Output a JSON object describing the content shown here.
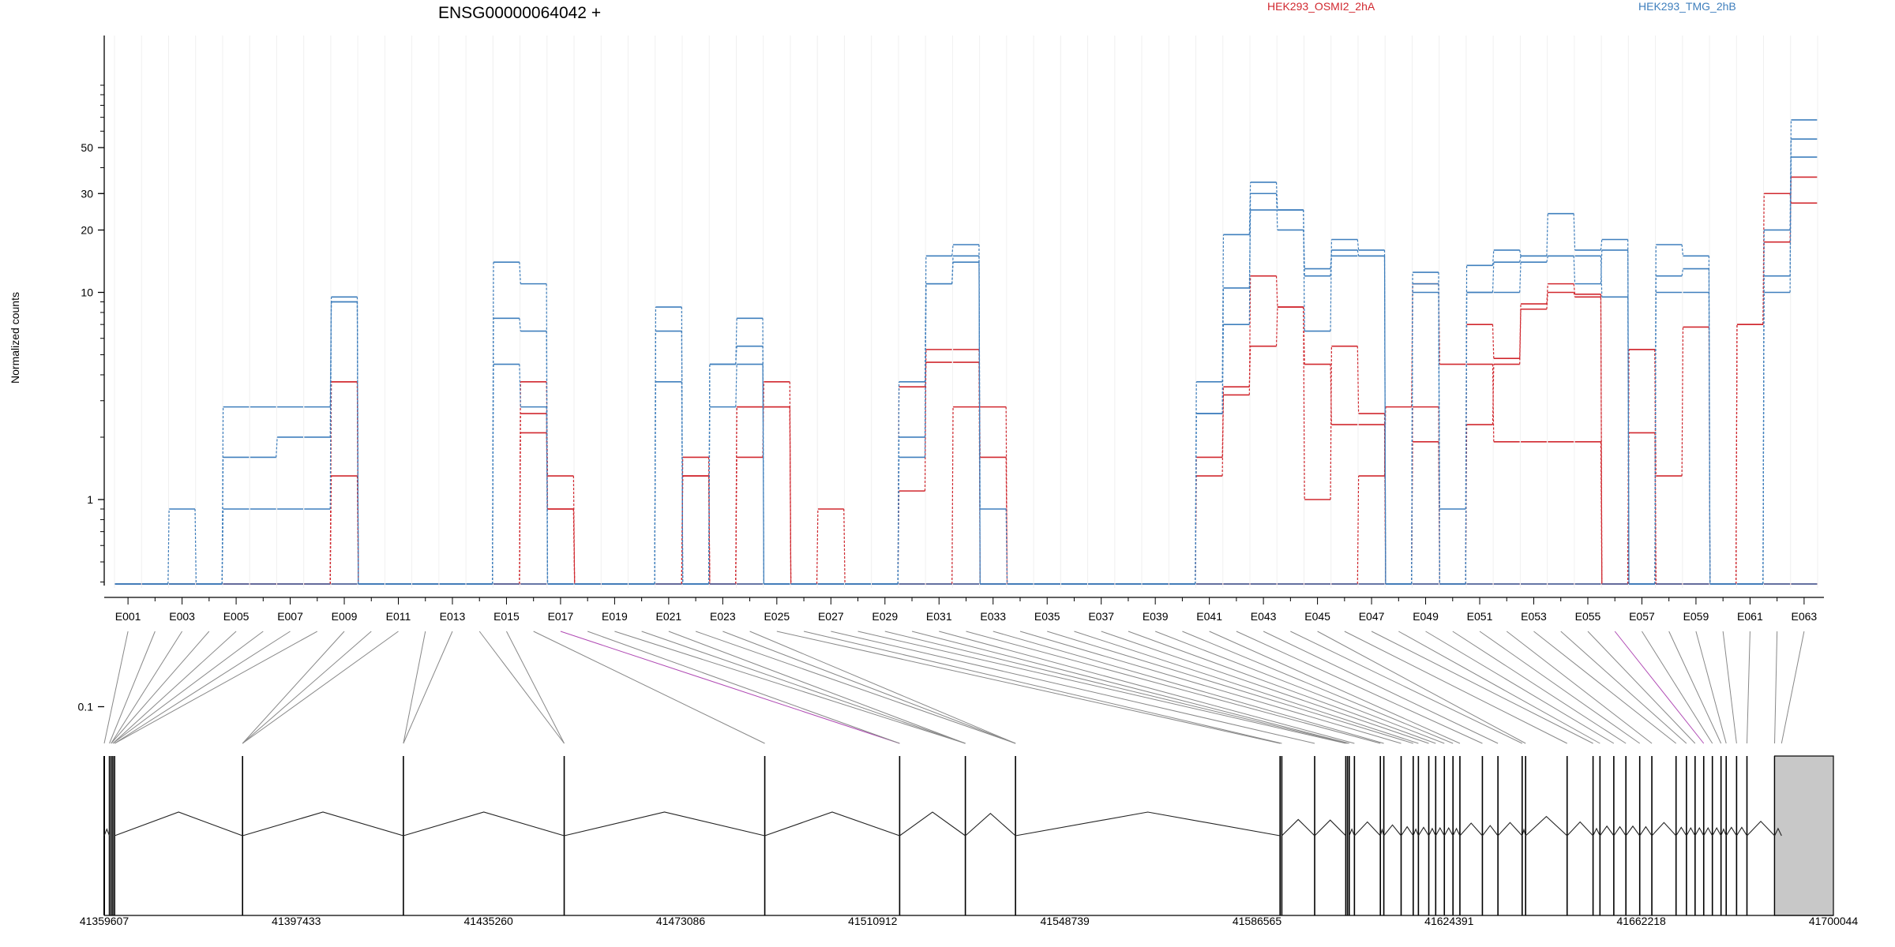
{
  "chart_data": {
    "type": "line",
    "title": "ENSG00000064042 +",
    "ylabel": "Normalized counts",
    "xlabel": "",
    "y_scale": "log",
    "y_ticks": [
      "0.1",
      "1",
      "10",
      "20",
      "30",
      "50"
    ],
    "legend": [
      "HEK293_OSMI2_2hA",
      "HEK293_TMG_2hB"
    ],
    "legend_placement": "top",
    "colors": {
      "osmi": "#d1282f",
      "tmg": "#3f7fbd",
      "link_highlight": "#b04ab4"
    },
    "exon_labels_shown": [
      "E001",
      "E003",
      "E005",
      "E007",
      "E009",
      "E011",
      "E013",
      "E015",
      "E017",
      "E019",
      "E021",
      "E023",
      "E025",
      "E027",
      "E029",
      "E031",
      "E033",
      "E035",
      "E037",
      "E039",
      "E041",
      "E043",
      "E045",
      "E047",
      "E049",
      "E051",
      "E053",
      "E055",
      "E057",
      "E059",
      "E061",
      "E063"
    ],
    "series": [
      {
        "name": "HEK293_OSMI2_2hA",
        "group": "osmi",
        "values": [
          0,
          0,
          0,
          0,
          0,
          0,
          0,
          0,
          0,
          0,
          0,
          0,
          0,
          0,
          0,
          0,
          0,
          0,
          0,
          0,
          0,
          0,
          0,
          0,
          0,
          0,
          0,
          0,
          0,
          0,
          0,
          0,
          0,
          0,
          0,
          0,
          0,
          0,
          0,
          0,
          0,
          0,
          0,
          0,
          0,
          0,
          0,
          0,
          0,
          0,
          0,
          0,
          0,
          0,
          0,
          0,
          0,
          0,
          0,
          0,
          0,
          0,
          0
        ]
      },
      {
        "name": "HEK293_OSMI2_2hA",
        "group": "osmi",
        "values": [
          0,
          0,
          0,
          0,
          0,
          0,
          0,
          0,
          1.3,
          0,
          0,
          0,
          0,
          0,
          0,
          2.6,
          0.9,
          0,
          0,
          0,
          0,
          1.6,
          0,
          2.8,
          2.8,
          0,
          0.9,
          0,
          0,
          0,
          0,
          2.8,
          2.8,
          0,
          0,
          0,
          0,
          0,
          0,
          0,
          0,
          0,
          0,
          0,
          0,
          0,
          1.3,
          2.8,
          11,
          4.5,
          4.5,
          1.9,
          1.9,
          1.9,
          1.9,
          0,
          2.1,
          0,
          0,
          0,
          0,
          0,
          0,
          0,
          0,
          1.3,
          0,
          0,
          0,
          0,
          0,
          0,
          0,
          0,
          0,
          0,
          0,
          0,
          0,
          0,
          0,
          0,
          0,
          0,
          0,
          0,
          0,
          0,
          0,
          0,
          0,
          0,
          0,
          0,
          0,
          0,
          0,
          0,
          0,
          0,
          0,
          0
        ]
      },
      {
        "name": "HEK293_OSMI2_2hA",
        "group": "osmi",
        "values": [
          0,
          0,
          0,
          0,
          0,
          0,
          0,
          0,
          3.7,
          0,
          0,
          0,
          0,
          0,
          0,
          3.7,
          1.3,
          0,
          0,
          0,
          0,
          1.3,
          0,
          1.6,
          3.7,
          0,
          0,
          0,
          0,
          1.1,
          5.3,
          5.3,
          1.6,
          0,
          0,
          0,
          0,
          0,
          0,
          0,
          1.3,
          3.2,
          12,
          8.5,
          4.5,
          2.3,
          2.3,
          0,
          1.9,
          0,
          2.3,
          4.5,
          8.3,
          10,
          9.5,
          0,
          5.3,
          0,
          0,
          0,
          7,
          30,
          27
        ]
      },
      {
        "name": "HEK293_OSMI2_2hA",
        "group": "osmi",
        "values": [
          0,
          0,
          0,
          0,
          0,
          0,
          0,
          0,
          3.7,
          0,
          0,
          0,
          0,
          0,
          0,
          2.1,
          0.9,
          0,
          0,
          0,
          0,
          1.3,
          0,
          2.8,
          2.8,
          0,
          0,
          0,
          0,
          3.5,
          4.6,
          4.6,
          0,
          0,
          0,
          0,
          0,
          0,
          0,
          0,
          1.6,
          3.5,
          5.5,
          8.5,
          1,
          5.5,
          2.6,
          0,
          2.8,
          0,
          7,
          4.8,
          8.8,
          11,
          9.8,
          0,
          5.3,
          1.3,
          6.8,
          0,
          7,
          17.5,
          36
        ]
      },
      {
        "name": "HEK293_OSMI2_2hA",
        "group": "osmi",
        "values": [
          0,
          0,
          0,
          0,
          0,
          0,
          0,
          0,
          0,
          0,
          0,
          0,
          0,
          0,
          0,
          0,
          0,
          0,
          0,
          0,
          0,
          0,
          0,
          0,
          0,
          0,
          0,
          0,
          0,
          0,
          0,
          0,
          0,
          0,
          0,
          0,
          0,
          0,
          0,
          0,
          0,
          0,
          0,
          0,
          0,
          0,
          0,
          0,
          0,
          0,
          0,
          0,
          0,
          0,
          0,
          0,
          0,
          0,
          0,
          0,
          0,
          0,
          0,
          0,
          0,
          0,
          0,
          0,
          0,
          0,
          0,
          0,
          0,
          0,
          0,
          0,
          0,
          0,
          0,
          0,
          0,
          0,
          0,
          0,
          0,
          0,
          0,
          0,
          0,
          0,
          0,
          0,
          0,
          0,
          0,
          0,
          0,
          0,
          0,
          0,
          0
        ]
      },
      {
        "name": "HEK293_TMG_2hB",
        "group": "tmg",
        "values": [
          0,
          0,
          0.9,
          0,
          2.8,
          2.8,
          2.8,
          2.8,
          9,
          0,
          0,
          0,
          0,
          0,
          14,
          11,
          0,
          0,
          0,
          0,
          8.5,
          0,
          4.5,
          7.5,
          0,
          0,
          0,
          0,
          0,
          3.7,
          15,
          17,
          0,
          0,
          0,
          0,
          0,
          0,
          0,
          0,
          3.7,
          19,
          34,
          25,
          6.5,
          18,
          16,
          0,
          12.5,
          0,
          13.5,
          16,
          15,
          24,
          16,
          18,
          0,
          17,
          15,
          0,
          0,
          20,
          68
        ]
      },
      {
        "name": "HEK293_TMG_2hB",
        "group": "tmg",
        "values": [
          0,
          0,
          0,
          0,
          1.6,
          1.6,
          2,
          2,
          9.5,
          0,
          0,
          0,
          0,
          0,
          7.5,
          6.5,
          0,
          0,
          0,
          0,
          6.5,
          0,
          4.5,
          5.5,
          0,
          0,
          0,
          0,
          0,
          1.6,
          11,
          14,
          0,
          0,
          0,
          0,
          0,
          0,
          0,
          0,
          2.6,
          7,
          30,
          20,
          13,
          16,
          15,
          0,
          10,
          0,
          10,
          14,
          15,
          15,
          11,
          16,
          0,
          12,
          13,
          0,
          0,
          10,
          55
        ]
      },
      {
        "name": "HEK293_TMG_2hB",
        "group": "tmg",
        "values": [
          0,
          0,
          0,
          0,
          0.9,
          0.9,
          0.9,
          0.9,
          9,
          0,
          0,
          0,
          0,
          0,
          4.5,
          2.8,
          0,
          0,
          0,
          0,
          3.7,
          0,
          2.8,
          4.5,
          0,
          0,
          0,
          0,
          0,
          2,
          11,
          15,
          0.9,
          0,
          0,
          0,
          0,
          0,
          0,
          0,
          2.6,
          10.5,
          25,
          25,
          12,
          15,
          15,
          0,
          11,
          0.9,
          10,
          10,
          14,
          15,
          15,
          9.5,
          0,
          10,
          10,
          0,
          0,
          12,
          45
        ]
      },
      {
        "name": "HEK293_TMG_2hB",
        "group": "tmg",
        "values": [
          0,
          0,
          0,
          0,
          0,
          0,
          0,
          0,
          0,
          0,
          0,
          0,
          0,
          0,
          0,
          0,
          0,
          0,
          0,
          0,
          0,
          0,
          0,
          0,
          0,
          0,
          0,
          0,
          0,
          0,
          0,
          0,
          0,
          0,
          0,
          0,
          0,
          0,
          0,
          0,
          0,
          0,
          0,
          0,
          0,
          0,
          0,
          0,
          0,
          0,
          0,
          0,
          0,
          0,
          0,
          0,
          0,
          0,
          0,
          0,
          0,
          0,
          0
        ]
      }
    ],
    "genome_axis_ticks": [
      "41359607",
      "41397433",
      "41435260",
      "41473086",
      "41510912",
      "41548739",
      "41586565",
      "41624391",
      "41662218",
      "41700044"
    ]
  }
}
